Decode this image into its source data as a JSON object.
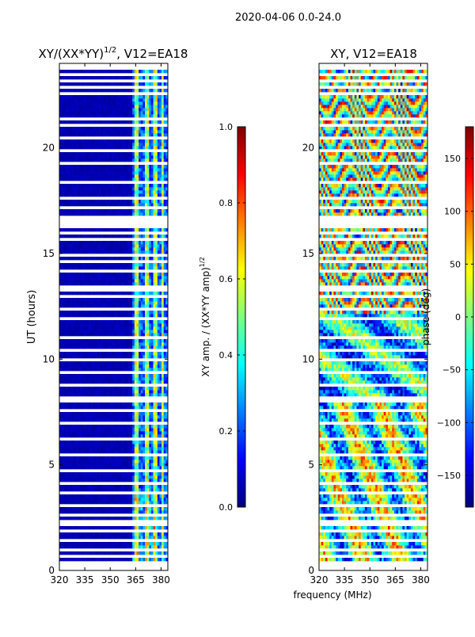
{
  "suptitle": "2020-04-06 0.0-24.0",
  "colors": {
    "jet": [
      "#00007f",
      "#0000ff",
      "#007fff",
      "#00ffff",
      "#7fff7f",
      "#ffff00",
      "#ff7f00",
      "#ff0000",
      "#7f0000"
    ],
    "gap": "#ffffff"
  },
  "chart_data": [
    {
      "type": "heatmap",
      "title_text": "XY/(XX*YY)",
      "title_exp": "1/2",
      "title_rest": ", V12=EA18",
      "x_range": [
        320,
        384
      ],
      "x_ticks": [
        320,
        335,
        350,
        365,
        380
      ],
      "x_tick_labels": [
        "320",
        "335",
        "350",
        "365",
        "380"
      ],
      "y_range": [
        0,
        24
      ],
      "y_ticks": [
        0,
        5,
        10,
        15,
        20
      ],
      "y_tick_labels": [
        "0",
        "5",
        "10",
        "15",
        "20"
      ],
      "ylabel": "UT (hours)",
      "colorbar": {
        "range": [
          0.0,
          1.0
        ],
        "ticks": [
          0.0,
          0.2,
          0.4,
          0.6,
          0.8,
          1.0
        ],
        "tick_labels": [
          "0.0",
          "0.2",
          "0.4",
          "0.6",
          "0.8",
          "1.0"
        ],
        "label_text": "XY amp. / (XX*YY amp)",
        "label_exp": "1/2"
      },
      "pattern": "Low amplitude (~0.05) across 320-362 MHz; bright striped channels (0.3-0.7) between 362 and 384 MHz; many blank integrations (white rows)"
    },
    {
      "type": "heatmap",
      "title_text": "XY, V12=EA18",
      "x_range": [
        320,
        384
      ],
      "x_ticks": [
        320,
        335,
        350,
        365,
        380
      ],
      "x_tick_labels": [
        "320",
        "335",
        "350",
        "365",
        "380"
      ],
      "y_range": [
        0,
        24
      ],
      "y_ticks": [
        0,
        5,
        10,
        15,
        20
      ],
      "y_tick_labels": [
        "0",
        "5",
        "10",
        "15",
        "20"
      ],
      "xlabel": "frequency (MHz)",
      "colorbar": {
        "range": [
          -180,
          180
        ],
        "ticks": [
          -150,
          -100,
          -50,
          0,
          50,
          100,
          150
        ],
        "tick_labels": [
          "−150",
          "−100",
          "−50",
          "0",
          "50",
          "100",
          "150"
        ],
        "label": "phase (deg)"
      },
      "pattern": "Phase wraps across full range; diagonal phase stripes after 12 UT; broad noisy phases before 8 UT"
    }
  ]
}
